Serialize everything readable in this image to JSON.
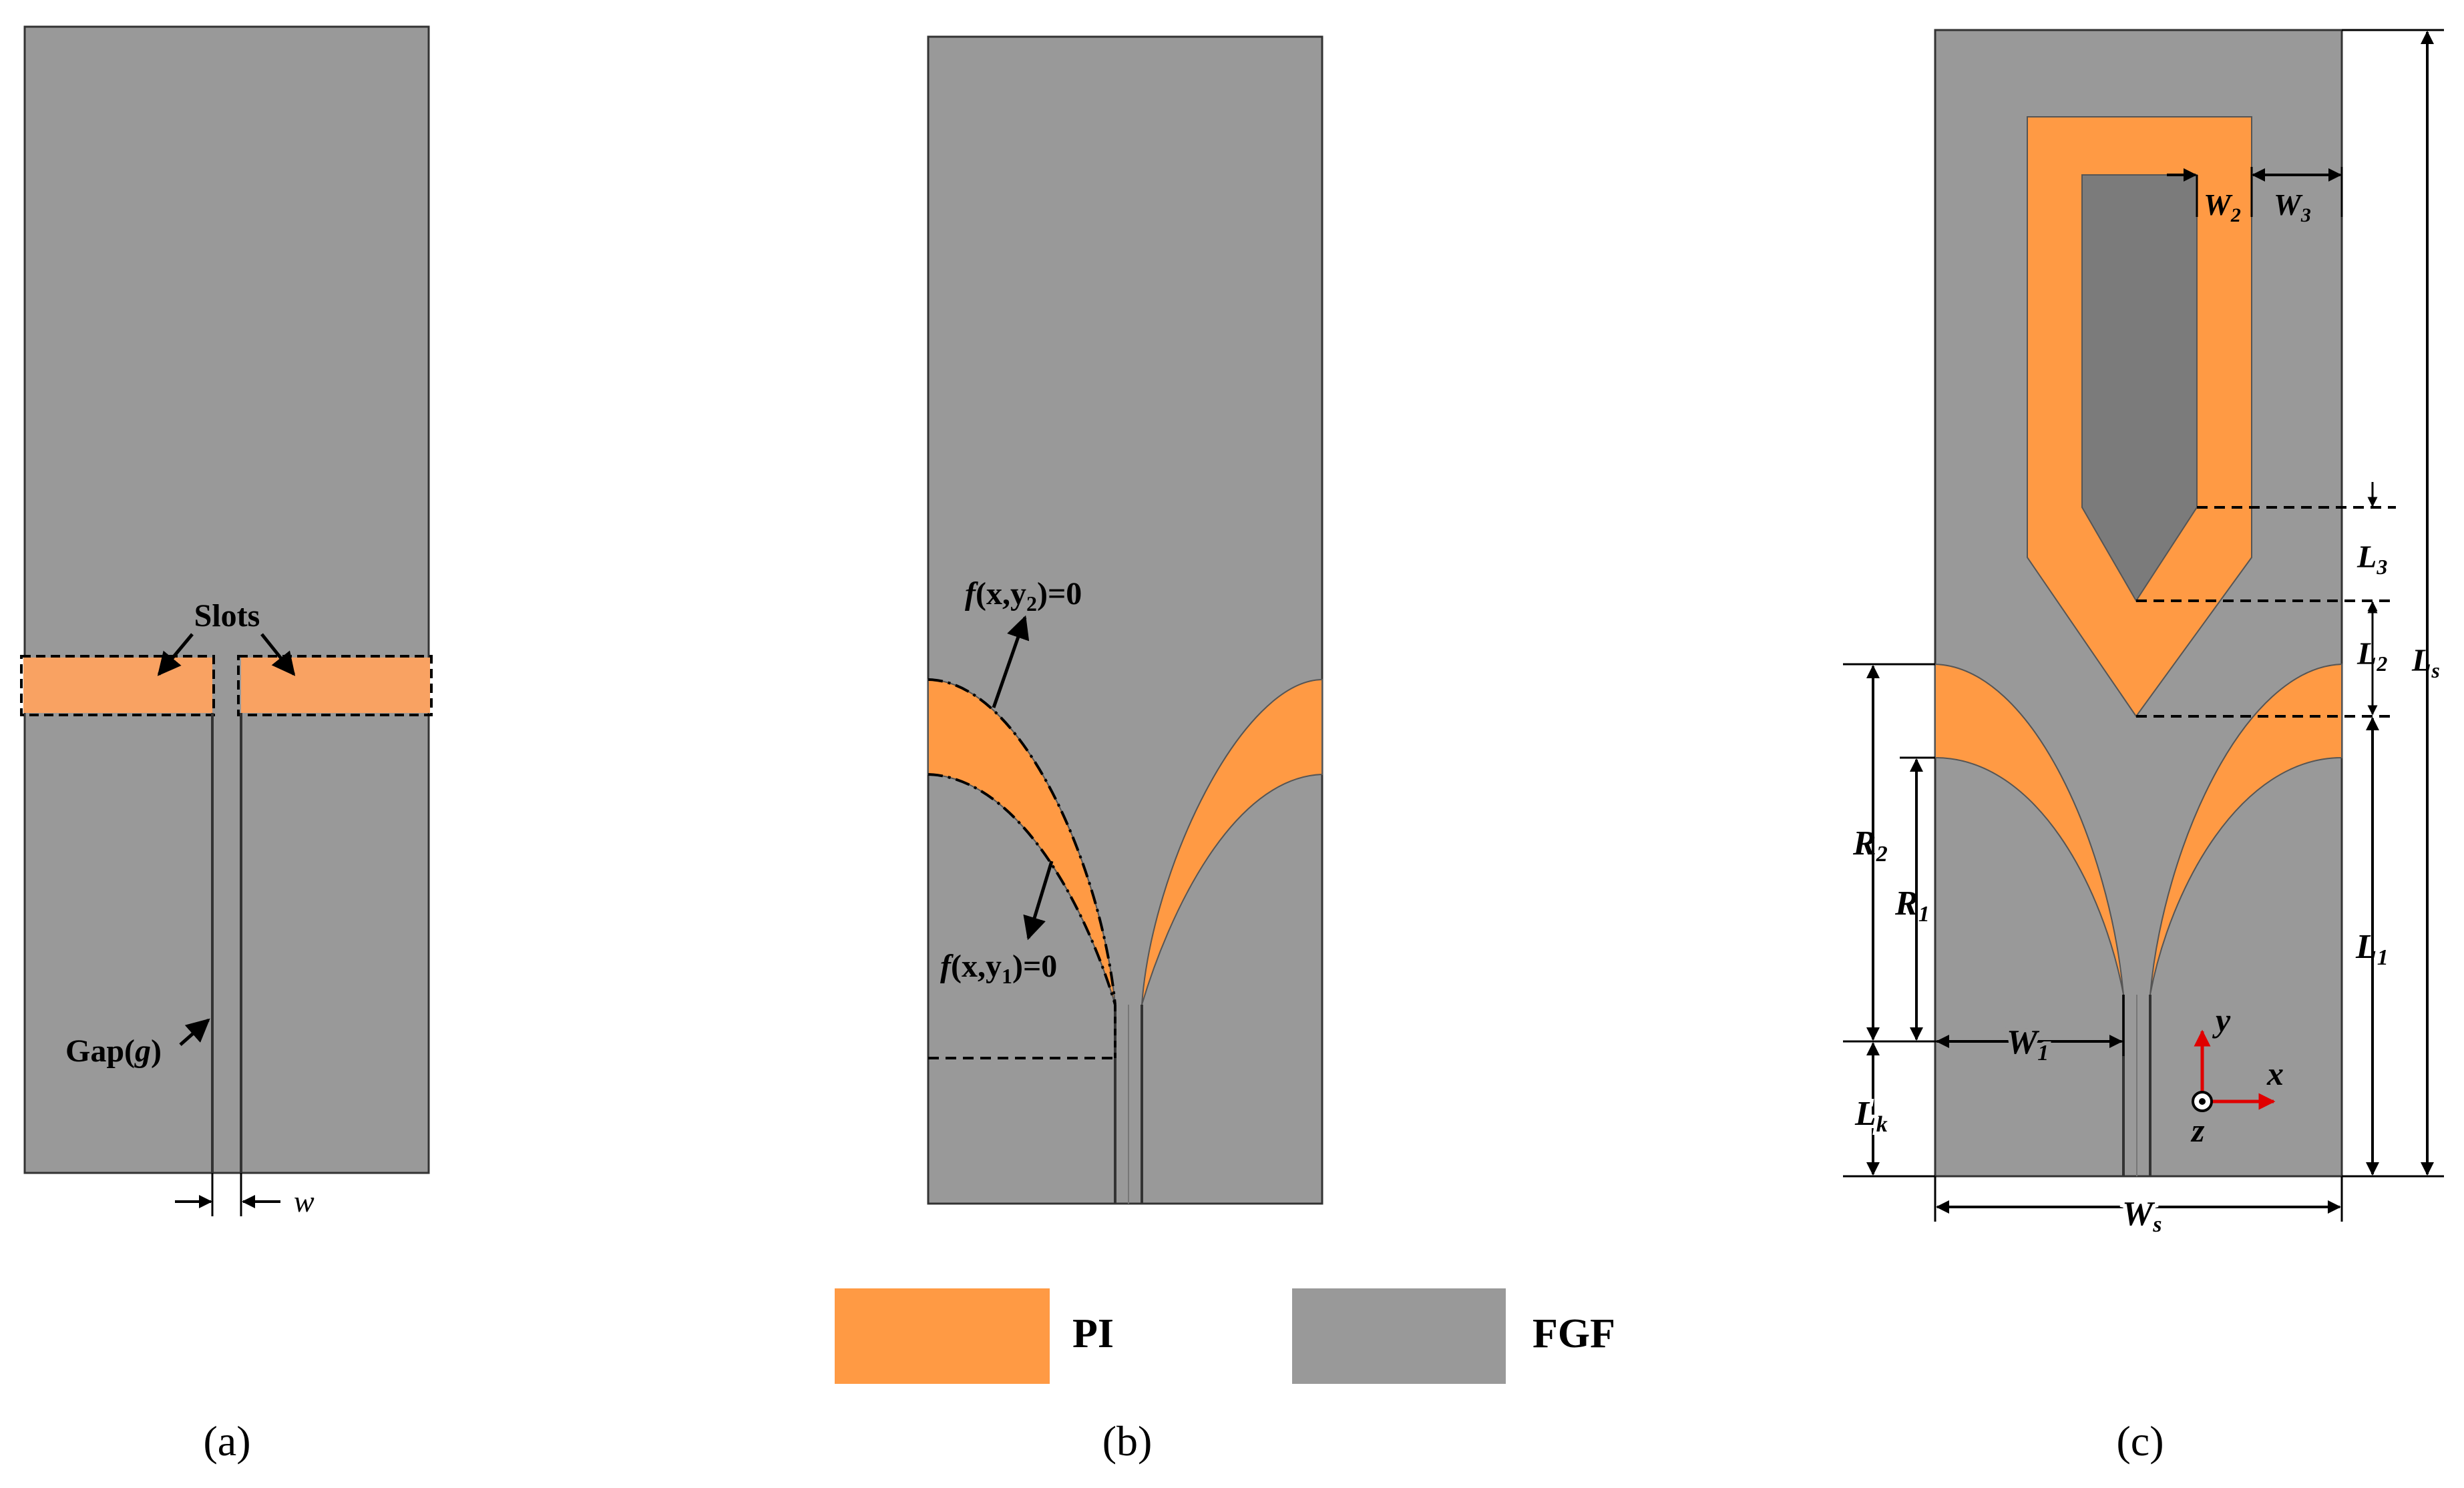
{
  "colors": {
    "pi": "#FF9A44",
    "fgf": "#999999",
    "slot_pi": "#F9A262",
    "inner_patch": "#7B7B7B",
    "axis": "#E00000",
    "ink": "#000000"
  },
  "panel_a": {
    "slots_label": "Slots",
    "gap_label": "Gap(",
    "gap_symbol": "g",
    "gap_close": ")",
    "w_label": "w",
    "caption": "(a)"
  },
  "panel_b": {
    "f2_label": "f",
    "f2_args": "(x,y",
    "f2_sub": "2",
    "f2_tail": ")=0",
    "f1_label": "f",
    "f1_args": "(x,y",
    "f1_sub": "1",
    "f1_tail": ")=0",
    "caption": "(b)"
  },
  "panel_c": {
    "W2": {
      "main": "W",
      "sub": "2"
    },
    "W3": {
      "main": "W",
      "sub": "3"
    },
    "L3": {
      "main": "L",
      "sub": "3"
    },
    "L2": {
      "main": "L",
      "sub": "2"
    },
    "Ls": {
      "main": "L",
      "sub": "s"
    },
    "L1": {
      "main": "L",
      "sub": "1"
    },
    "R2": {
      "main": "R",
      "sub": "2"
    },
    "R1": {
      "main": "R",
      "sub": "1"
    },
    "W1": {
      "main": "W",
      "sub": "1"
    },
    "Lk": {
      "main": "L",
      "sub": "k"
    },
    "Ws": {
      "main": "W",
      "sub": "s"
    },
    "axis_x": "x",
    "axis_y": "y",
    "axis_z": "z",
    "caption": "(c)"
  },
  "legend": [
    {
      "label": "PI",
      "color_key": "pi"
    },
    {
      "label": "FGF",
      "color_key": "fgf"
    }
  ]
}
